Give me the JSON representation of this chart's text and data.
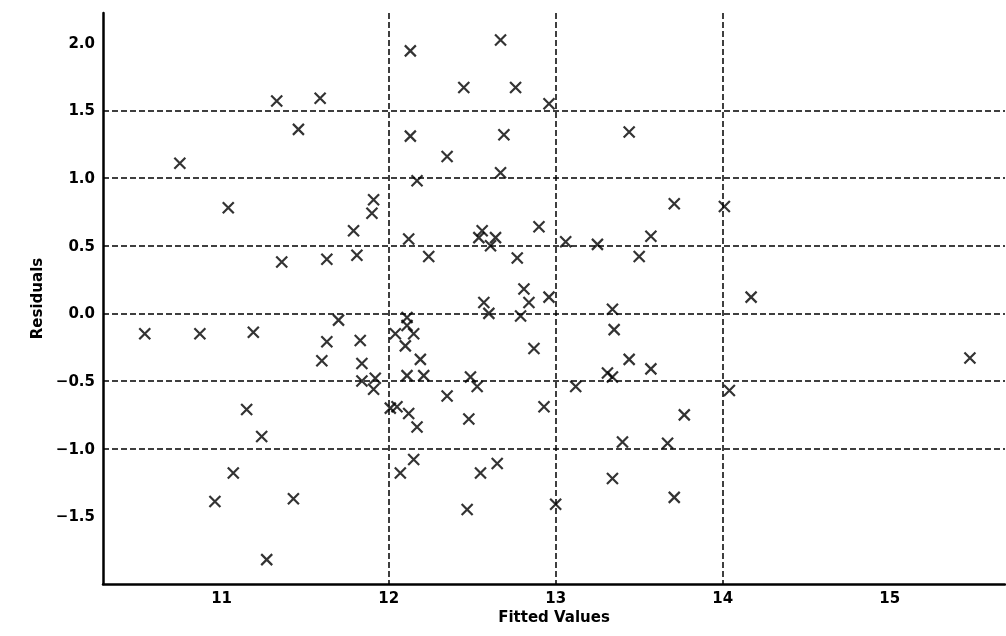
{
  "chart_data": {
    "type": "scatter",
    "xlabel": "Fitted Values",
    "ylabel": "Residuals",
    "xlim": [
      10.29,
      15.69
    ],
    "ylim": [
      -2.0,
      2.22
    ],
    "xticks": [
      11,
      12,
      13,
      14,
      15
    ],
    "yticks": [
      {
        "value": -1.5,
        "label": "−1.5"
      },
      {
        "value": -1,
        "label": "−1.0"
      },
      {
        "value": -0.5,
        "label": "−0.5"
      },
      {
        "value": 0,
        "label": "0.0"
      },
      0.5,
      {
        "value": 1,
        "label": "1.0"
      },
      1.5,
      {
        "value": 2,
        "label": "2.0"
      }
    ],
    "grid": true,
    "marker": "cross",
    "series": [
      {
        "color": "#000000",
        "x": [
          10.75,
          11.33,
          11.59,
          11.46,
          11.04,
          11.91,
          11.9,
          11.79,
          11.36,
          11.63,
          11.81,
          10.54,
          10.87,
          11.19,
          11.7,
          11.63,
          11.83,
          11.6,
          11.84,
          11.84,
          11.91,
          11.92,
          11.15,
          11.24,
          11.07,
          10.96,
          11.43,
          11.27,
          12.13,
          12.67,
          12.45,
          12.76,
          12.96,
          12.13,
          12.69,
          12.35,
          12.67,
          12.17,
          13.44,
          13.71,
          12.12,
          12.56,
          12.54,
          12.64,
          12.61,
          12.9,
          13.06,
          13.25,
          13.57,
          12.24,
          12.77,
          13.5,
          12.81,
          12.84,
          12.96,
          12.57,
          13.34,
          12.6,
          12.79,
          12.11,
          14.01,
          14.17,
          15.48,
          14.04,
          13.77,
          12.11,
          12.04,
          12.15,
          12.1,
          12.19,
          12.11,
          12.21,
          12.49,
          12.53,
          12.35,
          12.01,
          12.05,
          12.12,
          12.17,
          12.48,
          12.93,
          12.87,
          12.07,
          12.15,
          12.55,
          12.65,
          12.47,
          13.0,
          13.35,
          13.44,
          13.57,
          13.31,
          13.34,
          13.12,
          13.4,
          13.67,
          13.34,
          13.71
        ],
        "values": [
          1.11,
          1.57,
          1.59,
          1.36,
          0.78,
          0.84,
          0.74,
          0.61,
          0.38,
          0.4,
          0.43,
          -0.15,
          -0.15,
          -0.14,
          -0.05,
          -0.21,
          -0.2,
          -0.35,
          -0.37,
          -0.5,
          -0.56,
          -0.48,
          -0.71,
          -0.91,
          -1.18,
          -1.39,
          -1.37,
          -1.82,
          1.94,
          2.02,
          1.67,
          1.67,
          1.55,
          1.31,
          1.32,
          1.16,
          1.04,
          0.98,
          1.34,
          0.81,
          0.55,
          0.61,
          0.56,
          0.56,
          0.5,
          0.64,
          0.53,
          0.51,
          0.57,
          0.42,
          0.41,
          0.42,
          0.18,
          0.08,
          0.12,
          0.08,
          0.03,
          0.0,
          -0.02,
          -0.03,
          0.79,
          0.12,
          -0.33,
          -0.57,
          -0.75,
          -0.09,
          -0.15,
          -0.15,
          -0.24,
          -0.34,
          -0.46,
          -0.46,
          -0.47,
          -0.54,
          -0.61,
          -0.7,
          -0.69,
          -0.74,
          -0.84,
          -0.78,
          -0.69,
          -0.26,
          -1.18,
          -1.08,
          -1.18,
          -1.11,
          -1.45,
          -1.41,
          -0.12,
          -0.34,
          -0.41,
          -0.44,
          -0.47,
          -0.54,
          -0.95,
          -0.96,
          -1.22,
          -1.36
        ]
      }
    ]
  }
}
